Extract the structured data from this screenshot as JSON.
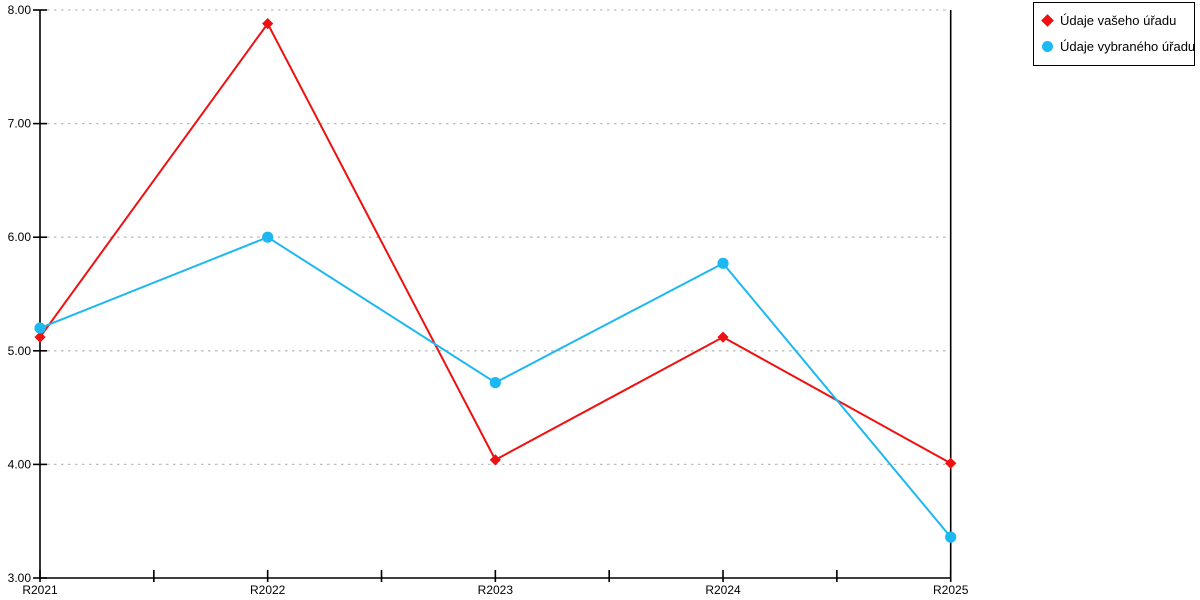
{
  "chart_data": {
    "type": "line",
    "title": "",
    "xlabel": "",
    "ylabel": "",
    "categories": [
      "R2021",
      "R2022",
      "R2023",
      "R2024",
      "R2025"
    ],
    "series": [
      {
        "name": "Údaje vašeho úřadu",
        "color": "#ee1111",
        "marker": "diamond",
        "values": [
          5.12,
          7.88,
          4.04,
          5.12,
          4.01
        ]
      },
      {
        "name": "Údaje vybraného úřadu",
        "color": "#1db8f1",
        "marker": "circle",
        "values": [
          5.2,
          6.0,
          4.72,
          5.77,
          3.36
        ]
      }
    ],
    "ylim": [
      3,
      8
    ],
    "ytick_step": 1,
    "ytick_labels": [
      "3.00",
      "4.00",
      "5.00",
      "6.00",
      "7.00",
      "8.00"
    ],
    "grid": "horizontal-dotted",
    "x_minor_ticks": "between-categories",
    "legend_position": "top-right"
  },
  "colors": {
    "background": "#ffffff",
    "axis": "#000000",
    "grid": "#bdbdbd",
    "text": "#000000",
    "legend_border": "#000000"
  }
}
